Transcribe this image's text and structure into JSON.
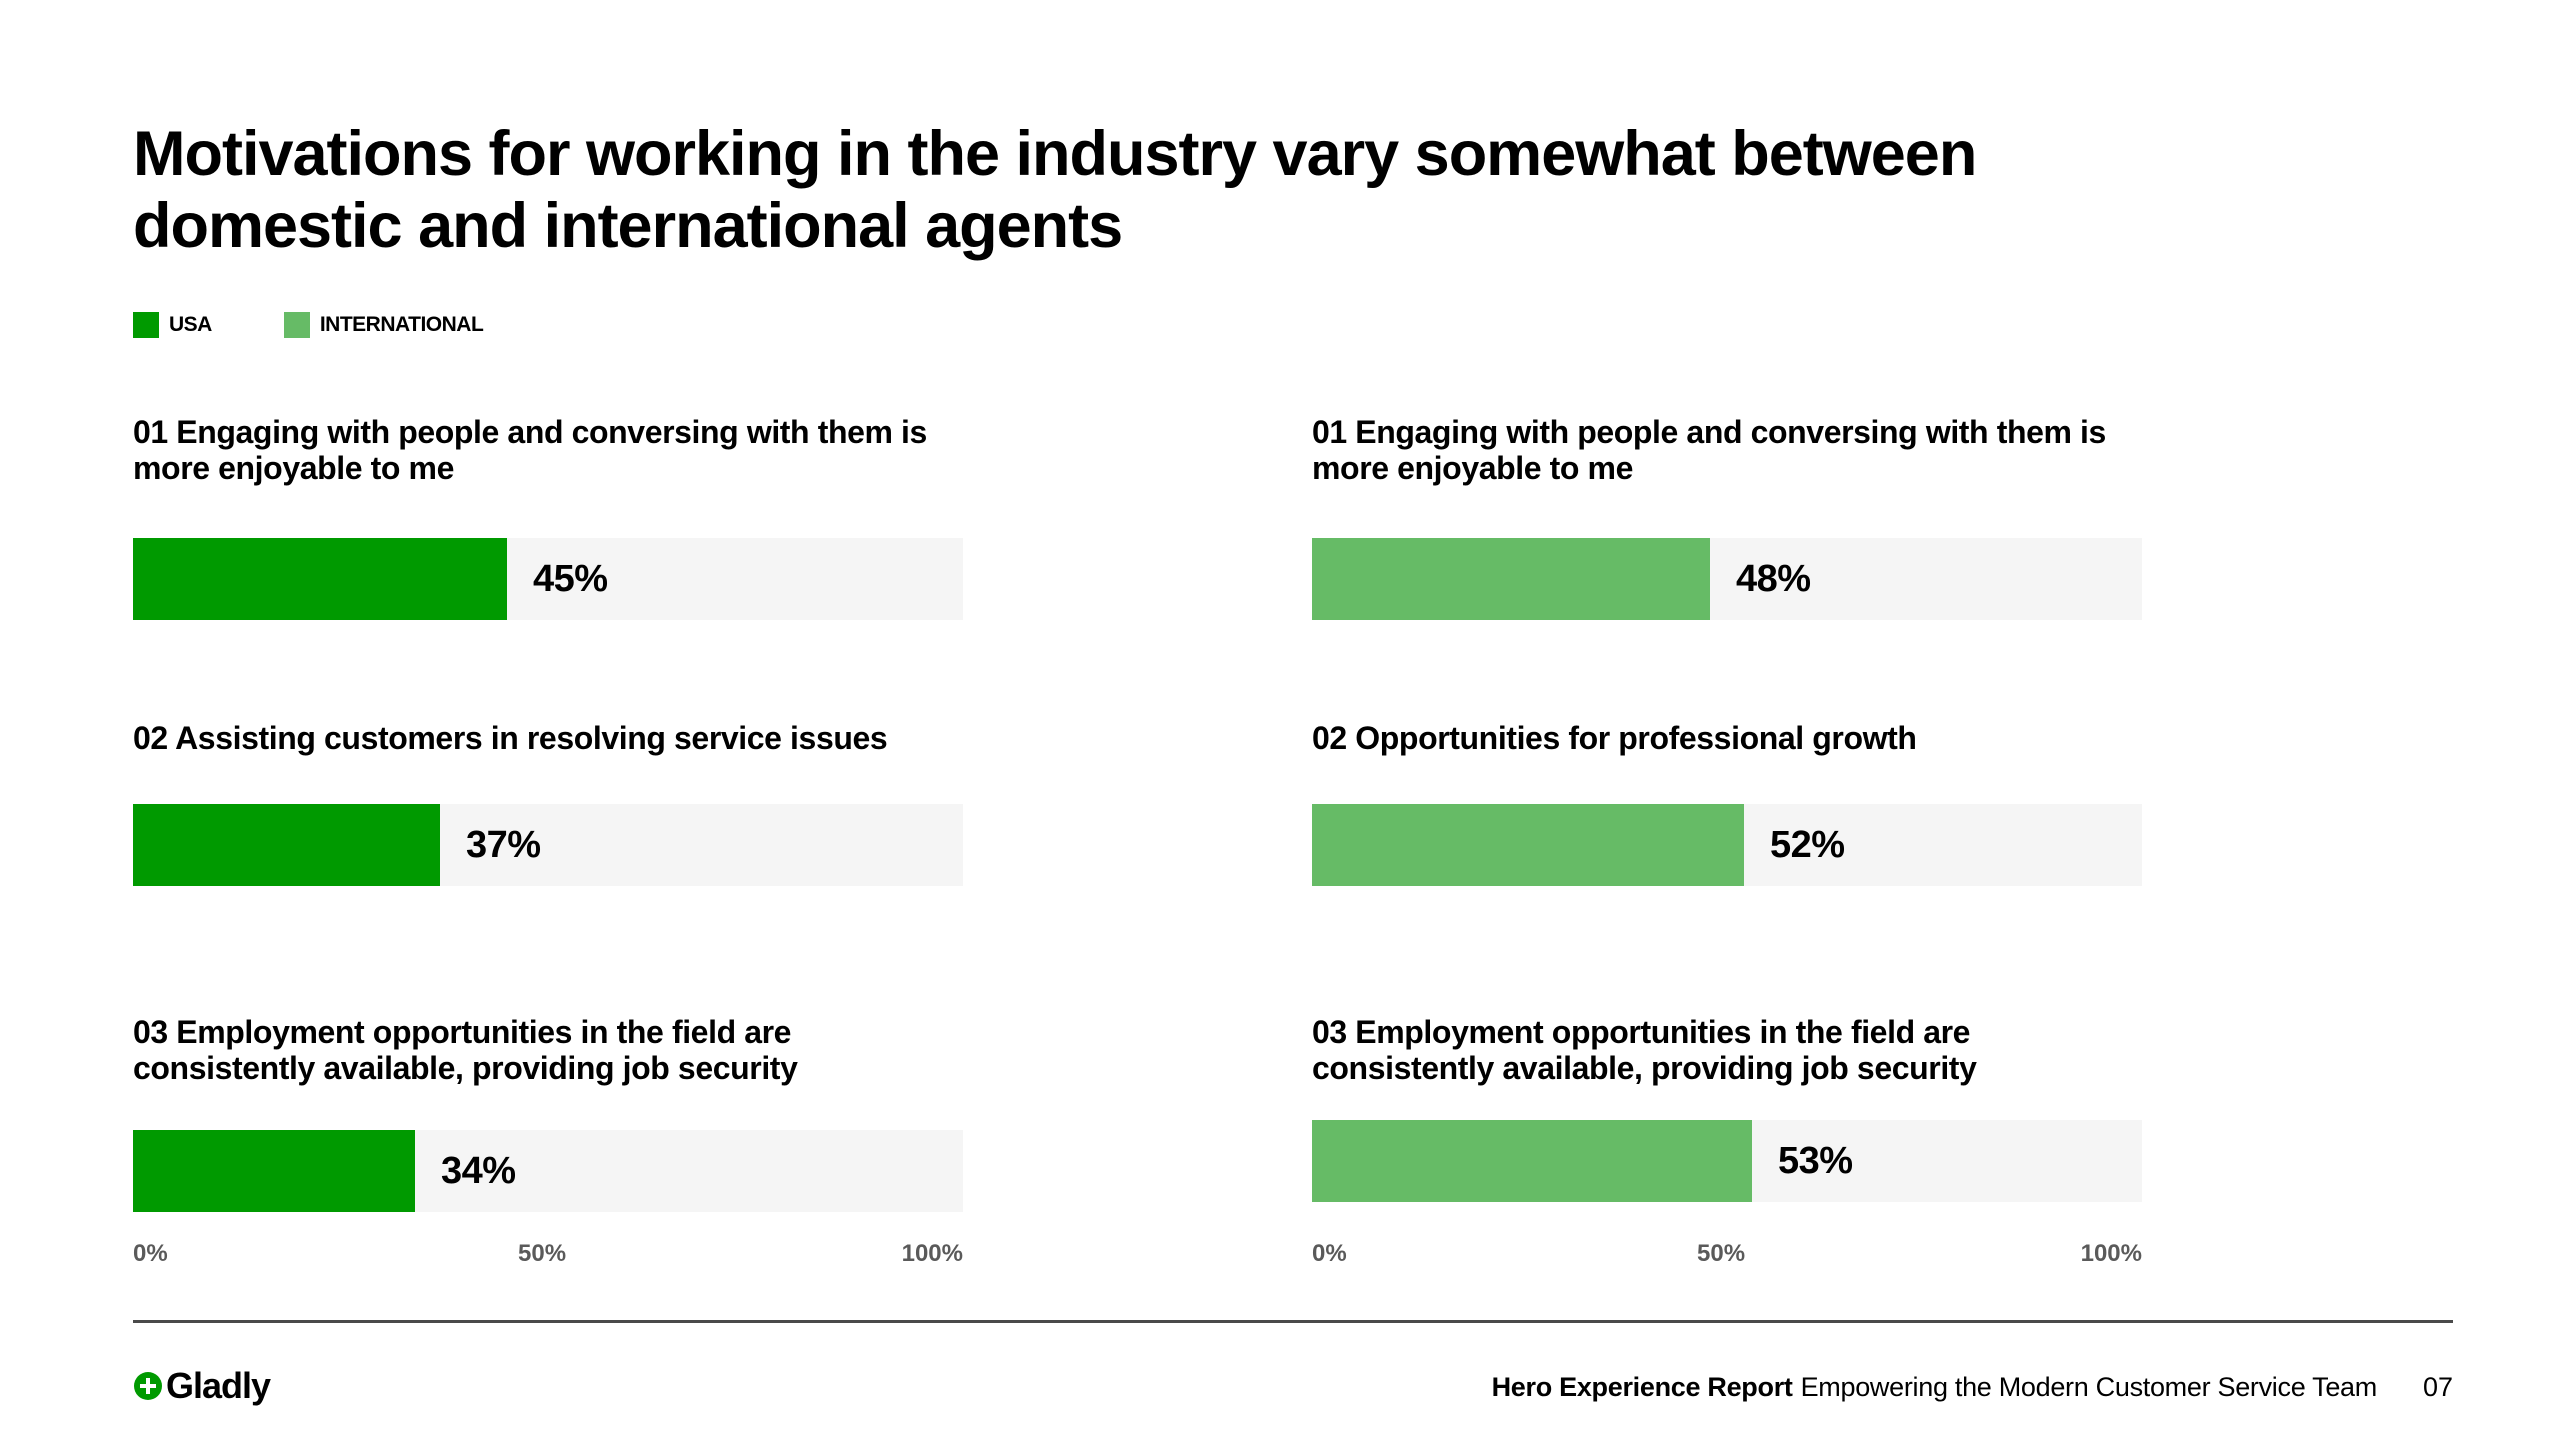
{
  "title": "Motivations for working in the industry vary somewhat between domestic and international agents",
  "legend": [
    {
      "label": "USA",
      "color": "#009a00"
    },
    {
      "label": "INTERNATIONAL",
      "color": "#66bb66"
    }
  ],
  "colors": {
    "usa": "#009a00",
    "international": "#66bb66",
    "track": "#f5f5f5"
  },
  "chart_data": [
    {
      "type": "bar",
      "series_name": "USA",
      "categories": [
        "01 Engaging with people and conversing with them is more enjoyable to me",
        "02 Assisting customers in resolving service issues",
        "03 Employment opportunities in the field are consistently available, providing job security"
      ],
      "values": [
        45,
        37,
        34
      ],
      "value_labels": [
        "45%",
        "37%",
        "34%"
      ],
      "xlim": [
        0,
        100
      ],
      "ticks": [
        "0%",
        "50%",
        "100%"
      ],
      "color": "#009a00"
    },
    {
      "type": "bar",
      "series_name": "INTERNATIONAL",
      "categories": [
        "01 Engaging with people and conversing with them is more enjoyable to me",
        "02 Opportunities for professional growth",
        "03 Employment opportunities in the field are consistently available, providing job security"
      ],
      "values": [
        48,
        52,
        53
      ],
      "value_labels": [
        "48%",
        "52%",
        "53%"
      ],
      "xlim": [
        0,
        100
      ],
      "ticks": [
        "0%",
        "50%",
        "100%"
      ],
      "color": "#66bb66"
    }
  ],
  "footer": {
    "logo_text": "Gladly",
    "report_title": "Hero Experience Report",
    "report_subtitle": "Empowering the Modern Customer Service Team",
    "page_number": "07"
  }
}
